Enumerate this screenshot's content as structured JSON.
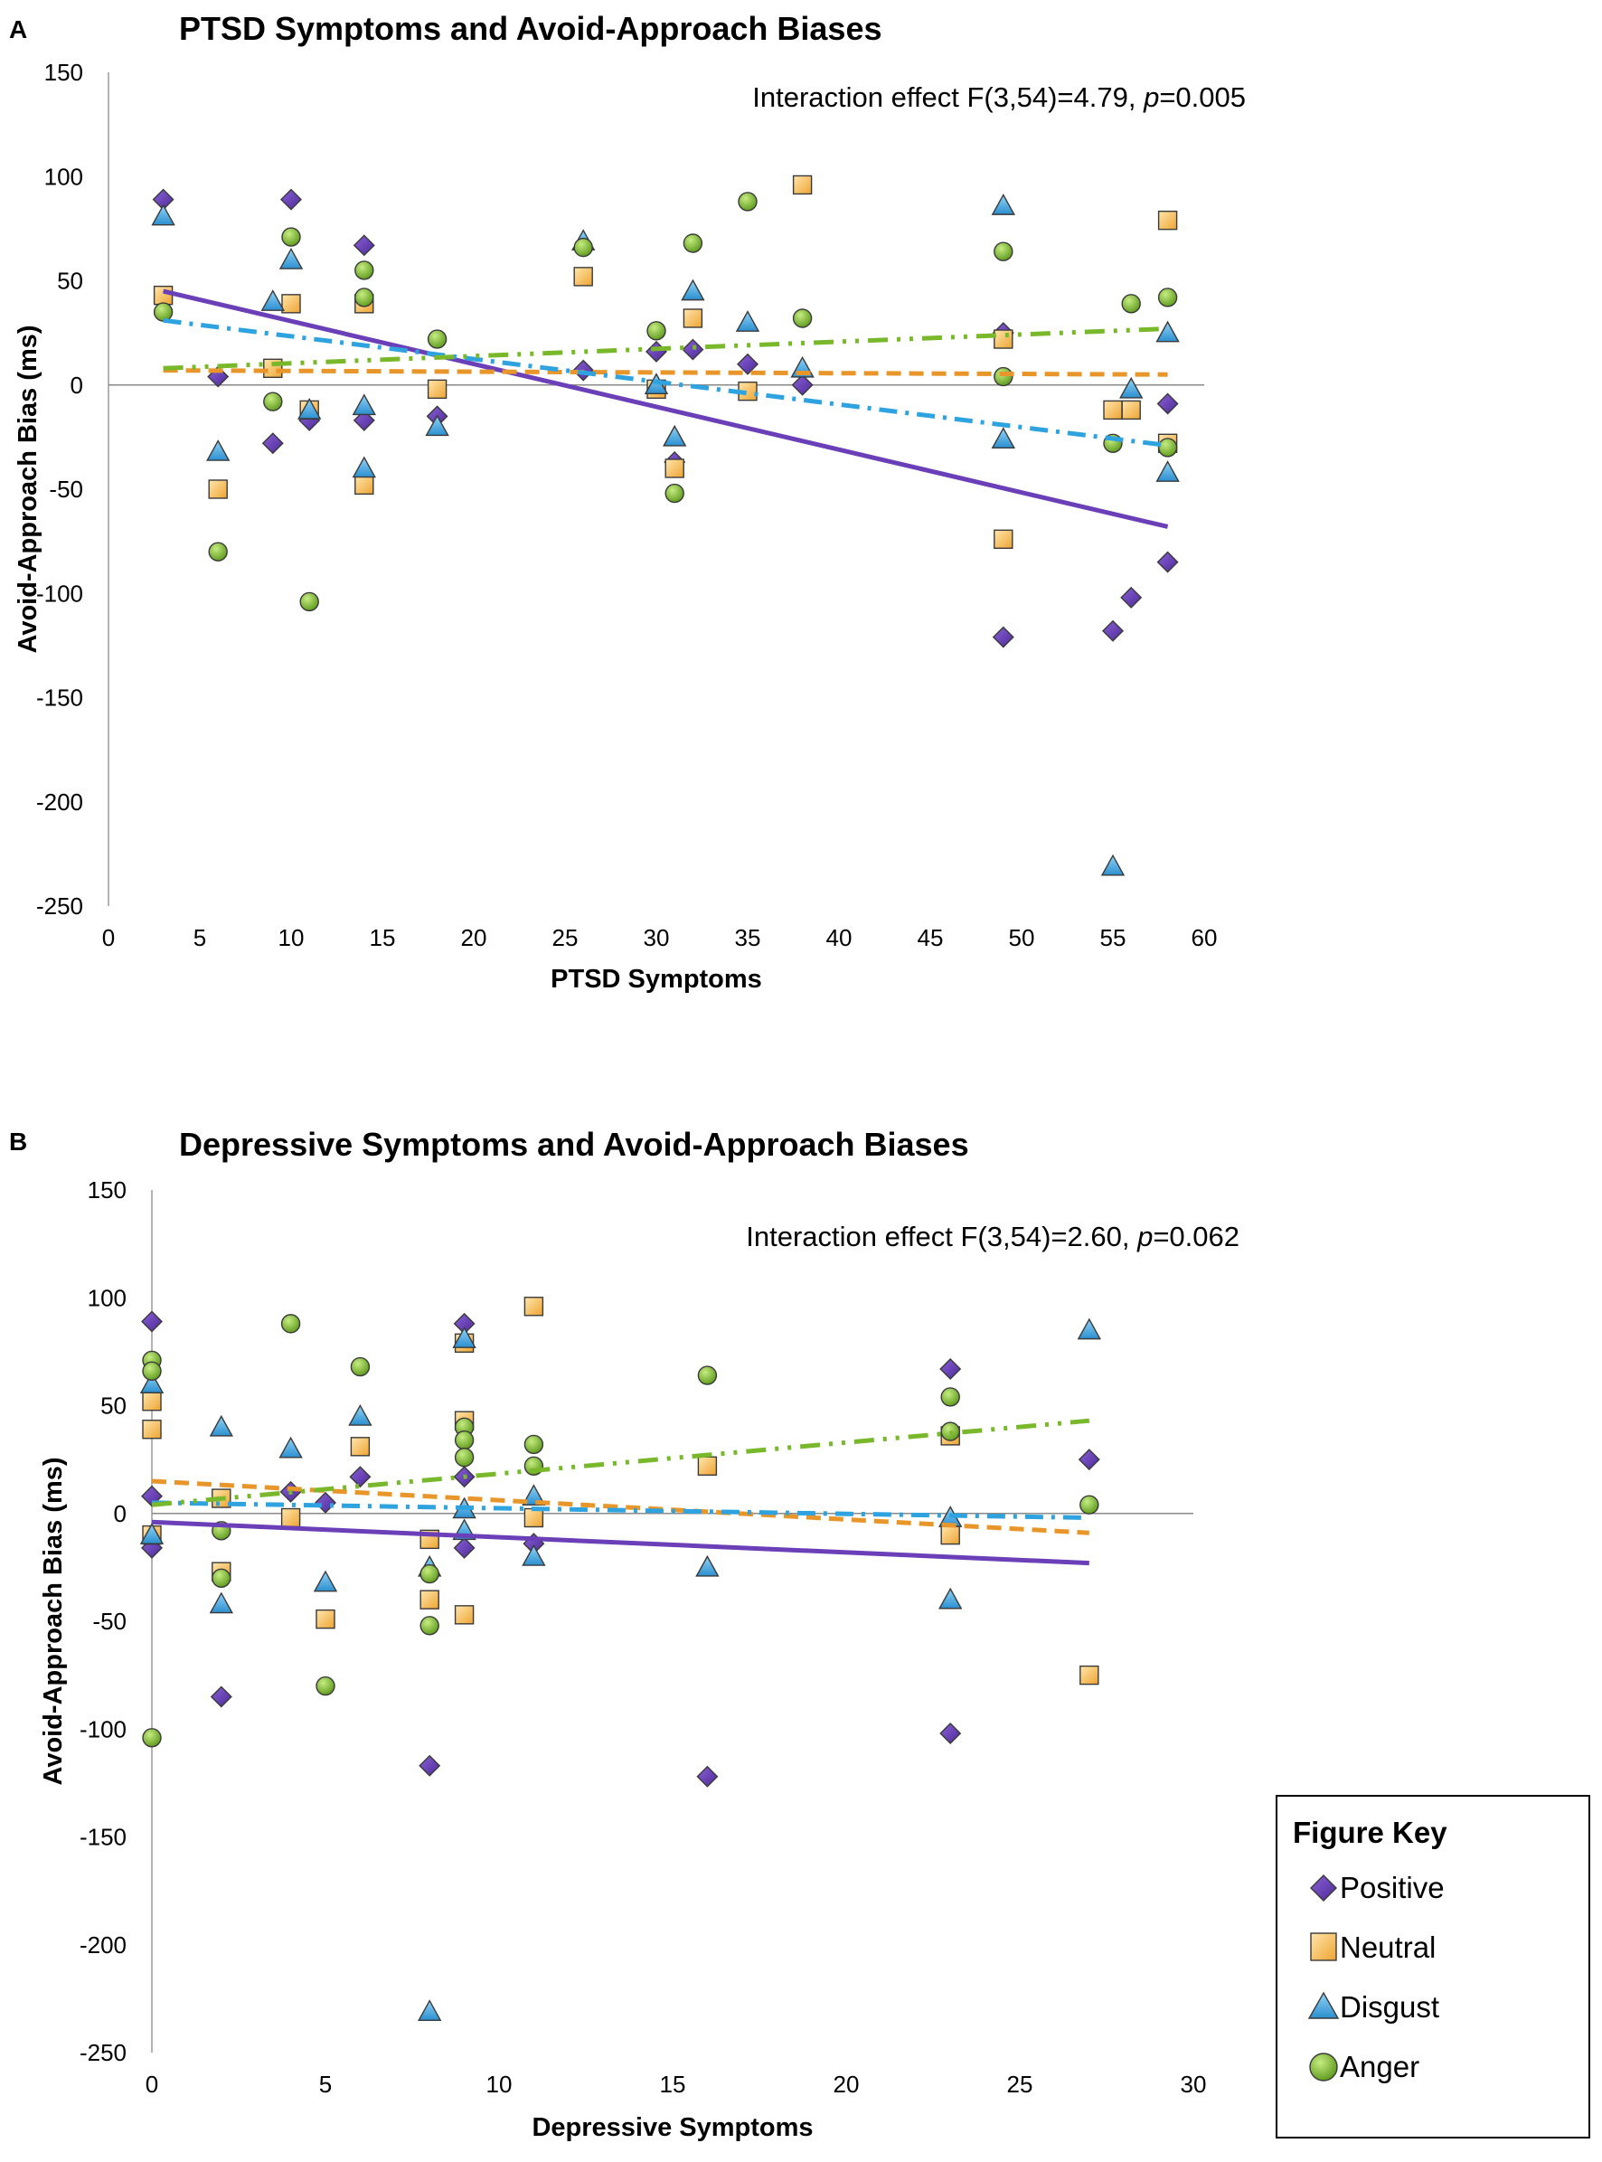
{
  "chart_data": [
    {
      "panel": "A",
      "type": "scatter",
      "title": "PTSD Symptoms and Avoid-Approach Biases",
      "xlabel": "PTSD Symptoms",
      "ylabel": "Avoid-Approach Bias (ms)",
      "annotation": {
        "prefix": "Interaction effect F(3,54)=4.79, ",
        "p_symbol": "p",
        "suffix": "=0.005"
      },
      "xlim": [
        0,
        60
      ],
      "ylim": [
        -250,
        150
      ],
      "xticks": [
        0,
        5,
        10,
        15,
        20,
        25,
        30,
        35,
        40,
        45,
        50,
        55,
        60
      ],
      "yticks": [
        150,
        100,
        50,
        0,
        -50,
        -100,
        -150,
        -200,
        -250
      ],
      "series": [
        {
          "name": "Positive",
          "marker": "diamond",
          "color": "#6a3fb8",
          "points": [
            [
              3,
              89
            ],
            [
              6,
              4
            ],
            [
              9,
              -28
            ],
            [
              10,
              89
            ],
            [
              11,
              -17
            ],
            [
              14,
              67
            ],
            [
              14,
              -17
            ],
            [
              18,
              -15
            ],
            [
              26,
              7
            ],
            [
              30,
              16
            ],
            [
              31,
              -37
            ],
            [
              32,
              17
            ],
            [
              35,
              10
            ],
            [
              38,
              0
            ],
            [
              49,
              25
            ],
            [
              49,
              -121
            ],
            [
              55,
              -118
            ],
            [
              56,
              -102
            ],
            [
              58,
              -9
            ],
            [
              58,
              -85
            ]
          ],
          "trend": {
            "style": "solid",
            "from": [
              3,
              45
            ],
            "to": [
              58,
              -68
            ]
          }
        },
        {
          "name": "Neutral",
          "marker": "square",
          "color": "#f5b94a",
          "points": [
            [
              3,
              43
            ],
            [
              6,
              -50
            ],
            [
              9,
              8
            ],
            [
              10,
              39
            ],
            [
              11,
              -12
            ],
            [
              14,
              39
            ],
            [
              14,
              -48
            ],
            [
              18,
              -2
            ],
            [
              26,
              52
            ],
            [
              30,
              -2
            ],
            [
              31,
              -40
            ],
            [
              32,
              32
            ],
            [
              35,
              -3
            ],
            [
              38,
              96
            ],
            [
              49,
              22
            ],
            [
              49,
              -74
            ],
            [
              55,
              -12
            ],
            [
              56,
              -12
            ],
            [
              58,
              79
            ],
            [
              58,
              -28
            ]
          ],
          "trend": {
            "style": "dashed",
            "from": [
              3,
              7
            ],
            "to": [
              58,
              5
            ]
          }
        },
        {
          "name": "Disgust",
          "marker": "triangle",
          "color": "#3ea3dd",
          "points": [
            [
              3,
              81
            ],
            [
              6,
              -32
            ],
            [
              9,
              40
            ],
            [
              10,
              60
            ],
            [
              11,
              -12
            ],
            [
              14,
              -10
            ],
            [
              14,
              -40
            ],
            [
              18,
              -20
            ],
            [
              26,
              69
            ],
            [
              30,
              0
            ],
            [
              31,
              -25
            ],
            [
              32,
              45
            ],
            [
              35,
              30
            ],
            [
              38,
              8
            ],
            [
              49,
              86
            ],
            [
              49,
              -26
            ],
            [
              55,
              -231
            ],
            [
              56,
              -2
            ],
            [
              58,
              25
            ],
            [
              58,
              -42
            ]
          ],
          "trend": {
            "style": "dashdot",
            "from": [
              3,
              31
            ],
            "to": [
              58,
              -29
            ]
          }
        },
        {
          "name": "Anger",
          "marker": "circle",
          "color": "#7ebd2f",
          "points": [
            [
              3,
              35
            ],
            [
              6,
              -80
            ],
            [
              9,
              -8
            ],
            [
              10,
              71
            ],
            [
              11,
              -104
            ],
            [
              14,
              55
            ],
            [
              14,
              42
            ],
            [
              18,
              22
            ],
            [
              26,
              66
            ],
            [
              30,
              26
            ],
            [
              31,
              -52
            ],
            [
              32,
              68
            ],
            [
              35,
              88
            ],
            [
              38,
              32
            ],
            [
              49,
              64
            ],
            [
              49,
              4
            ],
            [
              55,
              -28
            ],
            [
              56,
              39
            ],
            [
              58,
              42
            ],
            [
              58,
              -30
            ]
          ],
          "trend": {
            "style": "dashdotdot",
            "from": [
              3,
              8
            ],
            "to": [
              58,
              27
            ]
          }
        }
      ]
    },
    {
      "panel": "B",
      "type": "scatter",
      "title": "Depressive Symptoms and Avoid-Approach Biases",
      "xlabel": "Depressive Symptoms",
      "ylabel": "Avoid-Approach Bias (ms)",
      "annotation": {
        "prefix": "Interaction effect F(3,54)=2.60, ",
        "p_symbol": "p",
        "suffix": "=0.062"
      },
      "xlim": [
        0,
        30
      ],
      "ylim": [
        -250,
        150
      ],
      "xticks": [
        0,
        5,
        10,
        15,
        20,
        25,
        30
      ],
      "yticks": [
        150,
        100,
        50,
        0,
        -50,
        -100,
        -150,
        -200,
        -250
      ],
      "series": [
        {
          "name": "Positive",
          "marker": "diamond",
          "color": "#6a3fb8",
          "points": [
            [
              0,
              89
            ],
            [
              0,
              8
            ],
            [
              0,
              -16
            ],
            [
              2,
              -85
            ],
            [
              4,
              10
            ],
            [
              5,
              5
            ],
            [
              6,
              17
            ],
            [
              8,
              -117
            ],
            [
              9,
              88
            ],
            [
              9,
              17
            ],
            [
              9,
              -16
            ],
            [
              11,
              -14
            ],
            [
              16,
              -122
            ],
            [
              23,
              67
            ],
            [
              23,
              -102
            ],
            [
              27,
              25
            ]
          ],
          "trend": {
            "style": "solid",
            "from": [
              0,
              -4
            ],
            "to": [
              27,
              -23
            ]
          }
        },
        {
          "name": "Neutral",
          "marker": "square",
          "color": "#f5b94a",
          "points": [
            [
              0,
              52
            ],
            [
              0,
              39
            ],
            [
              0,
              -10
            ],
            [
              2,
              7
            ],
            [
              2,
              -27
            ],
            [
              4,
              -2
            ],
            [
              5,
              -49
            ],
            [
              6,
              31
            ],
            [
              8,
              -12
            ],
            [
              8,
              -40
            ],
            [
              9,
              79
            ],
            [
              9,
              43
            ],
            [
              9,
              -47
            ],
            [
              11,
              96
            ],
            [
              11,
              -2
            ],
            [
              16,
              22
            ],
            [
              23,
              36
            ],
            [
              23,
              -10
            ],
            [
              27,
              -75
            ]
          ],
          "trend": {
            "style": "dashed",
            "from": [
              0,
              15
            ],
            "to": [
              27,
              -9
            ]
          }
        },
        {
          "name": "Disgust",
          "marker": "triangle",
          "color": "#3ea3dd",
          "points": [
            [
              0,
              60
            ],
            [
              0,
              -10
            ],
            [
              2,
              40
            ],
            [
              2,
              -42
            ],
            [
              4,
              30
            ],
            [
              5,
              -32
            ],
            [
              6,
              45
            ],
            [
              8,
              -25
            ],
            [
              8,
              -231
            ],
            [
              9,
              81
            ],
            [
              9,
              2
            ],
            [
              9,
              -8
            ],
            [
              11,
              8
            ],
            [
              11,
              -20
            ],
            [
              16,
              -25
            ],
            [
              23,
              -2
            ],
            [
              23,
              -40
            ],
            [
              27,
              85
            ]
          ],
          "trend": {
            "style": "dashdot",
            "from": [
              0,
              5
            ],
            "to": [
              27,
              -2
            ]
          }
        },
        {
          "name": "Anger",
          "marker": "circle",
          "color": "#7ebd2f",
          "points": [
            [
              0,
              71
            ],
            [
              0,
              66
            ],
            [
              0,
              -104
            ],
            [
              2,
              -8
            ],
            [
              2,
              -30
            ],
            [
              4,
              88
            ],
            [
              5,
              -80
            ],
            [
              6,
              68
            ],
            [
              8,
              -28
            ],
            [
              8,
              -52
            ],
            [
              9,
              40
            ],
            [
              9,
              34
            ],
            [
              9,
              26
            ],
            [
              11,
              32
            ],
            [
              11,
              22
            ],
            [
              16,
              64
            ],
            [
              23,
              54
            ],
            [
              23,
              38
            ],
            [
              27,
              4
            ]
          ],
          "trend": {
            "style": "dashdotdot",
            "from": [
              0,
              4
            ],
            "to": [
              27,
              43
            ]
          }
        }
      ]
    }
  ],
  "legend": {
    "title": "Figure Key",
    "items": [
      {
        "label": "Positive",
        "marker": "diamond",
        "color": "#6a3fb8"
      },
      {
        "label": "Neutral",
        "marker": "square",
        "color": "#f5b94a"
      },
      {
        "label": "Disgust",
        "marker": "triangle",
        "color": "#3ea3dd"
      },
      {
        "label": "Anger",
        "marker": "circle",
        "color": "#7ebd2f"
      }
    ]
  }
}
